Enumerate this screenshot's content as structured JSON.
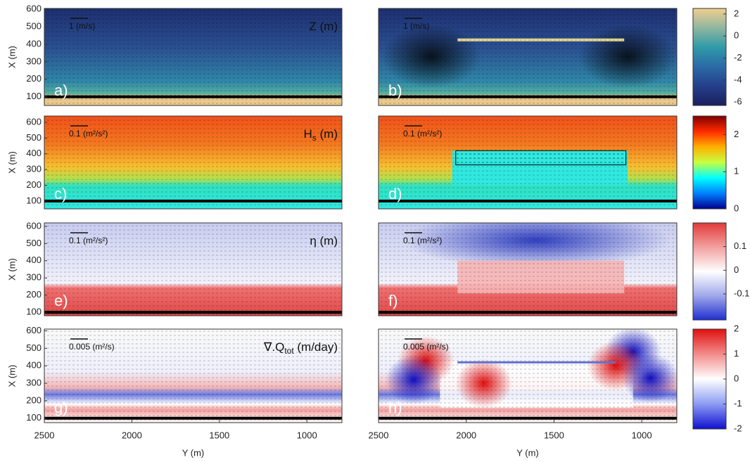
{
  "chart_data": [
    {
      "type": "field",
      "label": "a)",
      "title": "Z (m)",
      "arrow_label": "1 (m/s)",
      "ylabel": "X (m)",
      "xlim": [
        2500,
        800
      ],
      "ylim": [
        50,
        605
      ],
      "yticks": [
        100,
        200,
        300,
        400,
        500,
        600
      ]
    },
    {
      "type": "field",
      "label": "b)",
      "arrow_label": "1 (m/s)",
      "xlim": [
        2500,
        800
      ],
      "ylim": [
        50,
        605
      ]
    },
    {
      "type": "field",
      "label": "c)",
      "title": "H",
      "title_sub": "s",
      "title_rest": " (m)",
      "arrow_label": "0.1 (m²/s²)",
      "ylabel": "X (m)",
      "xlim": [
        2500,
        800
      ],
      "ylim": [
        50,
        640
      ],
      "yticks": [
        100,
        200,
        300,
        400,
        500,
        600
      ]
    },
    {
      "type": "field",
      "label": "d)",
      "arrow_label": "0.1 (m²/s²)",
      "xlim": [
        2500,
        800
      ],
      "ylim": [
        50,
        640
      ]
    },
    {
      "type": "field",
      "label": "e)",
      "title": "η (m)",
      "arrow_label": "0.1 (m²/s²)",
      "ylabel": "X (m)",
      "xlim": [
        2500,
        800
      ],
      "ylim": [
        80,
        620
      ],
      "yticks": [
        100,
        200,
        300,
        400,
        500,
        600
      ]
    },
    {
      "type": "field",
      "label": "f)",
      "arrow_label": "0.1 (m²/s²)",
      "xlim": [
        2500,
        800
      ],
      "ylim": [
        80,
        620
      ]
    },
    {
      "type": "field",
      "label": "g)",
      "title": "∇.Q",
      "title_sub": "tot",
      "title_rest": " (m/day)",
      "arrow_label": "0.005 (m²/s)",
      "ylabel": "X (m)",
      "xlabel": "Y (m)",
      "xlim": [
        2500,
        800
      ],
      "ylim": [
        75,
        610
      ],
      "yticks": [
        100,
        200,
        300,
        400,
        500,
        600
      ],
      "xticks": [
        2500,
        2000,
        1500,
        1000
      ]
    },
    {
      "type": "field",
      "label": "h)",
      "arrow_label": "0.005 (m²/s)",
      "xlabel": "Y (m)",
      "xlim": [
        2500,
        800
      ],
      "ylim": [
        75,
        610
      ],
      "xticks": [
        2500,
        2000,
        1500,
        1000
      ]
    },
    {
      "type": "colorbar",
      "ylim": [
        -6.3,
        2.5
      ],
      "yticks": [
        2,
        0,
        -2,
        -4,
        -6
      ],
      "colors": [
        "#f1cf8e",
        "#8fb6a0",
        "#2f9aa8",
        "#2b6aa6",
        "#243f8a",
        "#1a1f5e"
      ]
    },
    {
      "type": "colorbar",
      "ylim": [
        0,
        2.5
      ],
      "yticks": [
        0,
        1,
        2
      ],
      "colors": [
        "#7f0000",
        "#ff2a00",
        "#ffb000",
        "#c8ff40",
        "#00ffff",
        "#0080ff",
        "#00008f"
      ]
    },
    {
      "type": "colorbar",
      "ylim": [
        -0.21,
        0.2
      ],
      "yticks": [
        0.1,
        0,
        -0.1
      ],
      "colors": [
        "#e23a3a",
        "#f3a0a0",
        "#ffffff",
        "#a0a8ea",
        "#1f2fd0"
      ]
    },
    {
      "type": "colorbar",
      "ylim": [
        -2,
        2
      ],
      "yticks": [
        2,
        1,
        0,
        -1,
        -2
      ],
      "colors": [
        "#e01010",
        "#f38c8c",
        "#ffffff",
        "#8c9cf3",
        "#1010d0"
      ]
    }
  ]
}
